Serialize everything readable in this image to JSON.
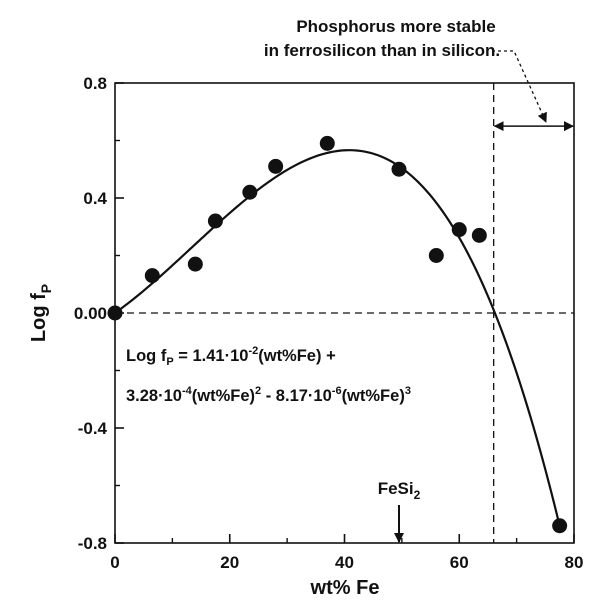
{
  "chart_data": {
    "type": "scatter",
    "xlabel": "wt% Fe",
    "ylabel": {
      "main": "Log f",
      "sub": "P"
    },
    "xlim": [
      0,
      80
    ],
    "ylim": [
      -0.8,
      0.8
    ],
    "x_ticks": [
      0,
      20,
      40,
      60,
      80
    ],
    "x_tick_labels": [
      "0",
      "20",
      "40",
      "60",
      "80"
    ],
    "y_ticks": [
      0.8,
      0.4,
      0.0,
      -0.4,
      -0.8
    ],
    "y_tick_labels": [
      "0.8",
      "0.4",
      "0.00",
      "-0.4",
      "-0.8"
    ],
    "points": [
      {
        "x": 0,
        "y": 0.0
      },
      {
        "x": 6.5,
        "y": 0.13
      },
      {
        "x": 14,
        "y": 0.17
      },
      {
        "x": 17.5,
        "y": 0.32
      },
      {
        "x": 23.5,
        "y": 0.42
      },
      {
        "x": 28,
        "y": 0.51
      },
      {
        "x": 37,
        "y": 0.59
      },
      {
        "x": 49.5,
        "y": 0.5
      },
      {
        "x": 56,
        "y": 0.2
      },
      {
        "x": 60,
        "y": 0.29
      },
      {
        "x": 63.5,
        "y": 0.27
      },
      {
        "x": 77.5,
        "y": -0.74
      }
    ],
    "fit": {
      "a1": 0.0141,
      "a2": 0.000328,
      "a3": -8.17e-06,
      "x_range": [
        0,
        77.5
      ]
    },
    "zero_line_y": 0.0,
    "stability_boundary_x": 66,
    "equation": {
      "line1": {
        "t1": "Log f",
        "t1_sub": "P",
        "t2": " = 1.41",
        "t3": "·",
        "t4": "10",
        "t4_sup": "-2",
        "t5": "(wt%Fe) +"
      },
      "line2": {
        "t1": "3.28",
        "t2": "·",
        "t3": "10",
        "t3_sup": "-4",
        "t4": "(wt%Fe)",
        "t4_sup": "2",
        "t5": " - 8.17",
        "t6": "·",
        "t7": "10",
        "t7_sup": "-6",
        "t8": "(wt%Fe)",
        "t8_sup": "3"
      }
    },
    "annotation": {
      "line1": "Phosphorus more stable",
      "line2": "in ferrosilicon than in silicon."
    },
    "marker": {
      "text": "FeSi",
      "sub": "2",
      "x": 49.5
    }
  }
}
